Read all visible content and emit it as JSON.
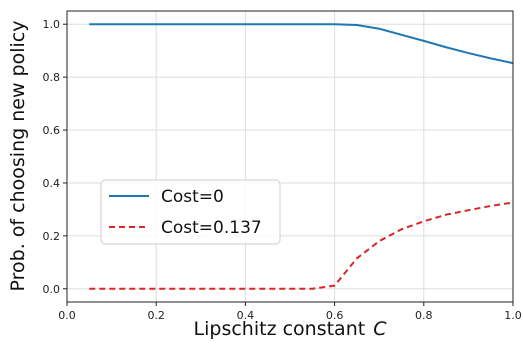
{
  "chart_data": {
    "type": "line",
    "xlabel": "Lipschitz constant",
    "xlabel_var": "C",
    "ylabel": "Prob. of choosing new policy",
    "xlim": [
      0.0,
      1.0
    ],
    "ylim": [
      -0.05,
      1.05
    ],
    "xticks": [
      0.0,
      0.2,
      0.4,
      0.6,
      0.8,
      1.0
    ],
    "yticks": [
      0.0,
      0.2,
      0.4,
      0.6,
      0.8,
      1.0
    ],
    "xtick_labels": [
      "0.0",
      "0.2",
      "0.4",
      "0.6",
      "0.8",
      "1.0"
    ],
    "ytick_labels": [
      "0.0",
      "0.2",
      "0.4",
      "0.6",
      "0.8",
      "1.0"
    ],
    "grid": true,
    "legend_position": "center-left",
    "series": [
      {
        "name": "Cost=0",
        "color": "#1f77b4",
        "style": "solid",
        "x": [
          0.05,
          0.1,
          0.2,
          0.3,
          0.4,
          0.5,
          0.55,
          0.6,
          0.65,
          0.7,
          0.75,
          0.8,
          0.85,
          0.9,
          0.95,
          1.0
        ],
        "y": [
          1.0,
          1.0,
          1.0,
          1.0,
          1.0,
          1.0,
          1.0,
          1.0,
          0.997,
          0.983,
          0.96,
          0.937,
          0.913,
          0.891,
          0.871,
          0.853
        ]
      },
      {
        "name": "Cost=0.137",
        "color": "#d62728",
        "style": "dashed",
        "x": [
          0.05,
          0.1,
          0.2,
          0.3,
          0.4,
          0.5,
          0.55,
          0.6,
          0.65,
          0.7,
          0.75,
          0.8,
          0.85,
          0.9,
          0.95,
          1.0
        ],
        "y": [
          0.0,
          0.0,
          0.0,
          0.0,
          0.0,
          0.0,
          0.0,
          0.012,
          0.115,
          0.18,
          0.225,
          0.255,
          0.28,
          0.297,
          0.313,
          0.326
        ]
      }
    ]
  }
}
